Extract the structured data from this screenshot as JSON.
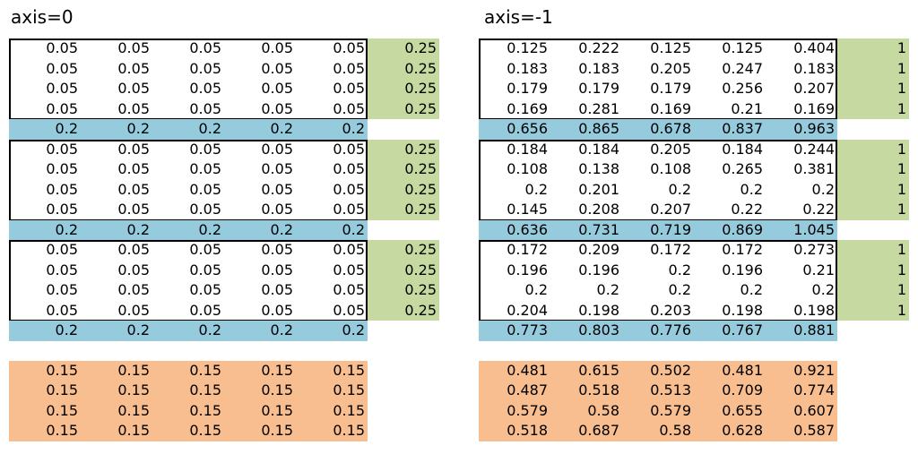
{
  "left": {
    "title": "axis=0",
    "blocks": [
      {
        "rows": [
          [
            "0.05",
            "0.05",
            "0.05",
            "0.05",
            "0.05",
            "0.25"
          ],
          [
            "0.05",
            "0.05",
            "0.05",
            "0.05",
            "0.05",
            "0.25"
          ],
          [
            "0.05",
            "0.05",
            "0.05",
            "0.05",
            "0.05",
            "0.25"
          ],
          [
            "0.05",
            "0.05",
            "0.05",
            "0.05",
            "0.05",
            "0.25"
          ]
        ],
        "colsum": [
          "0.2",
          "0.2",
          "0.2",
          "0.2",
          "0.2"
        ]
      },
      {
        "rows": [
          [
            "0.05",
            "0.05",
            "0.05",
            "0.05",
            "0.05",
            "0.25"
          ],
          [
            "0.05",
            "0.05",
            "0.05",
            "0.05",
            "0.05",
            "0.25"
          ],
          [
            "0.05",
            "0.05",
            "0.05",
            "0.05",
            "0.05",
            "0.25"
          ],
          [
            "0.05",
            "0.05",
            "0.05",
            "0.05",
            "0.05",
            "0.25"
          ]
        ],
        "colsum": [
          "0.2",
          "0.2",
          "0.2",
          "0.2",
          "0.2"
        ]
      },
      {
        "rows": [
          [
            "0.05",
            "0.05",
            "0.05",
            "0.05",
            "0.05",
            "0.25"
          ],
          [
            "0.05",
            "0.05",
            "0.05",
            "0.05",
            "0.05",
            "0.25"
          ],
          [
            "0.05",
            "0.05",
            "0.05",
            "0.05",
            "0.05",
            "0.25"
          ],
          [
            "0.05",
            "0.05",
            "0.05",
            "0.05",
            "0.05",
            "0.25"
          ]
        ],
        "colsum": [
          "0.2",
          "0.2",
          "0.2",
          "0.2",
          "0.2"
        ]
      }
    ],
    "total": [
      [
        "0.15",
        "0.15",
        "0.15",
        "0.15",
        "0.15"
      ],
      [
        "0.15",
        "0.15",
        "0.15",
        "0.15",
        "0.15"
      ],
      [
        "0.15",
        "0.15",
        "0.15",
        "0.15",
        "0.15"
      ],
      [
        "0.15",
        "0.15",
        "0.15",
        "0.15",
        "0.15"
      ]
    ]
  },
  "right": {
    "title": "axis=-1",
    "blocks": [
      {
        "rows": [
          [
            "0.125",
            "0.222",
            "0.125",
            "0.125",
            "0.404",
            "1"
          ],
          [
            "0.183",
            "0.183",
            "0.205",
            "0.247",
            "0.183",
            "1"
          ],
          [
            "0.179",
            "0.179",
            "0.179",
            "0.256",
            "0.207",
            "1"
          ],
          [
            "0.169",
            "0.281",
            "0.169",
            "0.21",
            "0.169",
            "1"
          ]
        ],
        "colsum": [
          "0.656",
          "0.865",
          "0.678",
          "0.837",
          "0.963"
        ]
      },
      {
        "rows": [
          [
            "0.184",
            "0.184",
            "0.205",
            "0.184",
            "0.244",
            "1"
          ],
          [
            "0.108",
            "0.138",
            "0.108",
            "0.265",
            "0.381",
            "1"
          ],
          [
            "0.2",
            "0.201",
            "0.2",
            "0.2",
            "0.2",
            "1"
          ],
          [
            "0.145",
            "0.208",
            "0.207",
            "0.22",
            "0.22",
            "1"
          ]
        ],
        "colsum": [
          "0.636",
          "0.731",
          "0.719",
          "0.869",
          "1.045"
        ]
      },
      {
        "rows": [
          [
            "0.172",
            "0.209",
            "0.172",
            "0.172",
            "0.273",
            "1"
          ],
          [
            "0.196",
            "0.196",
            "0.2",
            "0.196",
            "0.21",
            "1"
          ],
          [
            "0.2",
            "0.2",
            "0.2",
            "0.2",
            "0.2",
            "1"
          ],
          [
            "0.204",
            "0.198",
            "0.203",
            "0.198",
            "0.198",
            "1"
          ]
        ],
        "colsum": [
          "0.773",
          "0.803",
          "0.776",
          "0.767",
          "0.881"
        ]
      }
    ],
    "total": [
      [
        "0.481",
        "0.615",
        "0.502",
        "0.481",
        "0.921"
      ],
      [
        "0.487",
        "0.518",
        "0.513",
        "0.709",
        "0.774"
      ],
      [
        "0.579",
        "0.58",
        "0.579",
        "0.655",
        "0.607"
      ],
      [
        "0.518",
        "0.687",
        "0.58",
        "0.628",
        "0.587"
      ]
    ]
  },
  "colors": {
    "row_sum_bg": "#c5d9a0",
    "col_sum_bg": "#95cbdc",
    "total_bg": "#f8be90",
    "frame": "#000000"
  }
}
